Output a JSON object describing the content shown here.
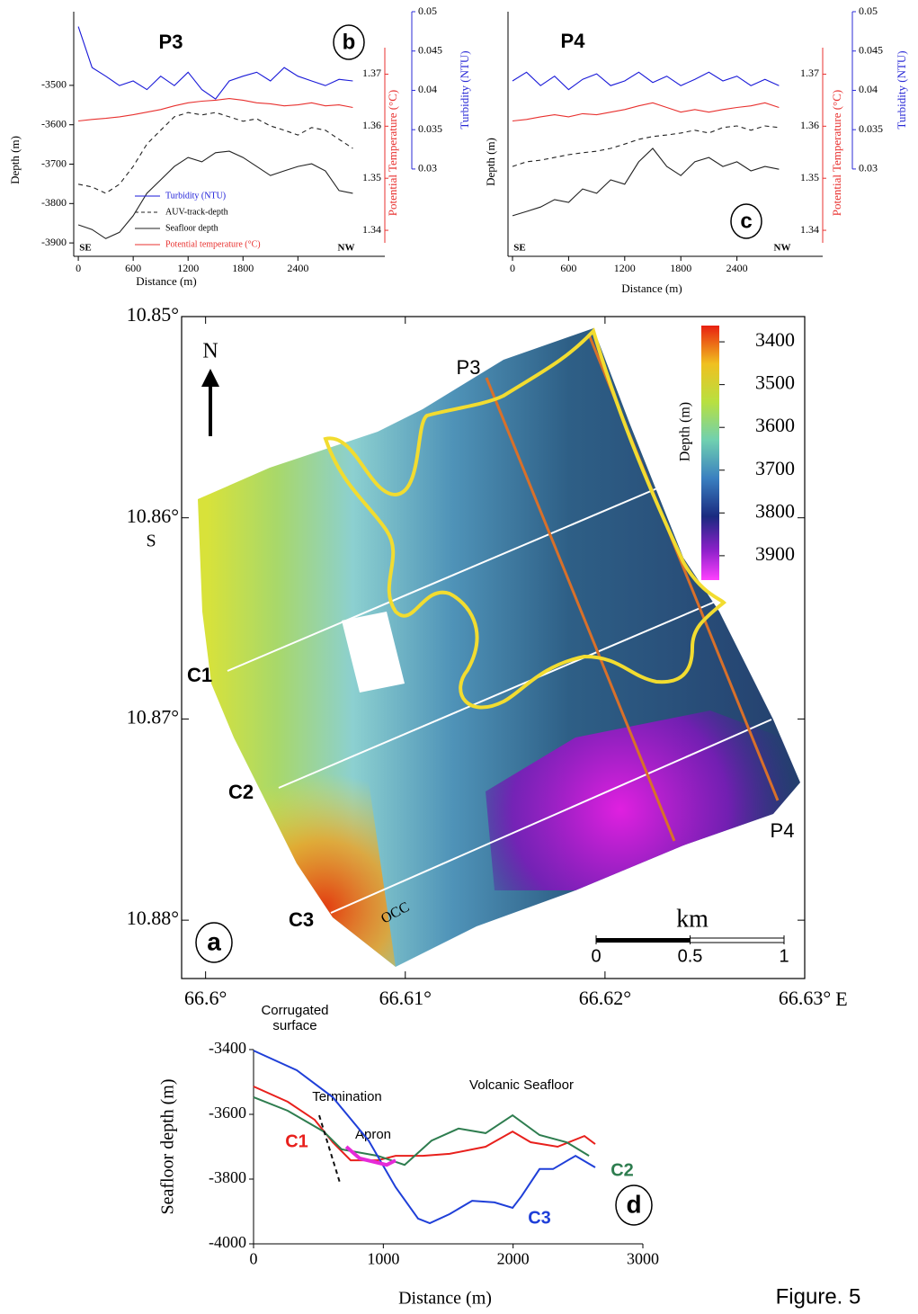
{
  "chart_data": [
    {
      "type": "line",
      "title": "P3",
      "panel_label": "b",
      "left_end": "SE",
      "right_end": "NW",
      "xlabel": "Distance (m)",
      "ylabel": "Depth (m)",
      "y2label": "Potential Temperature (°C)",
      "y3label": "Turbidity (NTU)",
      "xlim": [
        -50,
        3350
      ],
      "xticks": [
        0,
        600,
        1200,
        1800,
        2400
      ],
      "ylim": [
        -3934,
        -3313
      ],
      "yticks": [
        -3500,
        -3600,
        -3700,
        -3800,
        -3900
      ],
      "y2lim": [
        1.335,
        1.382
      ],
      "y2ticks": [
        1.37,
        1.36,
        1.35,
        1.34
      ],
      "y2color": "#e8312f",
      "y3lim": [
        0.0189,
        0.05
      ],
      "y3ticks": [
        0.05,
        0.045,
        0.04,
        0.035,
        0.03
      ],
      "y3color": "#2b2bd6",
      "legend": true,
      "x": [
        0,
        150,
        300,
        450,
        600,
        750,
        900,
        1050,
        1200,
        1350,
        1500,
        1650,
        1800,
        1950,
        2100,
        2250,
        2400,
        2550,
        2700,
        2850,
        3000
      ],
      "series": [
        {
          "name": "Turbidity (NTU)",
          "color": "#1a1ad8",
          "axis": "y3",
          "values": [
            0.0481,
            0.0429,
            0.0418,
            0.0406,
            0.0412,
            0.0401,
            0.0418,
            0.0406,
            0.0423,
            0.0401,
            0.0389,
            0.0412,
            0.0418,
            0.0423,
            0.0412,
            0.0429,
            0.0418,
            0.0412,
            0.0406,
            0.0414,
            0.0412
          ]
        },
        {
          "name": "AUV-track-depth",
          "color": "#222222",
          "axis": "y",
          "dash": true,
          "values": [
            -3751,
            -3758,
            -3774,
            -3751,
            -3706,
            -3649,
            -3614,
            -3580,
            -3569,
            -3575,
            -3569,
            -3580,
            -3591,
            -3585,
            -3603,
            -3614,
            -3626,
            -3607,
            -3614,
            -3637,
            -3660
          ]
        },
        {
          "name": "Seafloor depth",
          "color": "#222222",
          "axis": "y",
          "values": [
            -3854,
            -3866,
            -3889,
            -3873,
            -3831,
            -3774,
            -3740,
            -3706,
            -3683,
            -3694,
            -3671,
            -3667,
            -3683,
            -3706,
            -3729,
            -3717,
            -3706,
            -3699,
            -3717,
            -3767,
            -3774
          ]
        },
        {
          "name": "Potential temperature (°C)",
          "color": "#e8312f",
          "axis": "y2",
          "values": [
            1.361,
            1.3613,
            1.3615,
            1.3618,
            1.3622,
            1.3627,
            1.3632,
            1.3639,
            1.3645,
            1.3648,
            1.365,
            1.3653,
            1.365,
            1.3645,
            1.3643,
            1.3639,
            1.3641,
            1.3645,
            1.3639,
            1.3641,
            1.3636
          ]
        }
      ]
    },
    {
      "type": "line",
      "title": "P4",
      "panel_label": "c",
      "left_end": "SE",
      "right_end": "NW",
      "xlabel": "Distance (m)",
      "ylabel": "Depth (m)",
      "y2label": "Potential Temperature (°C)",
      "y3label": "Turbidity (NTU)",
      "xlim": [
        -48,
        3317
      ],
      "xticks": [
        0,
        600,
        1200,
        1800,
        2400
      ],
      "ylim": [
        -3934,
        -3313
      ],
      "y2lim": [
        1.335,
        1.382
      ],
      "y2ticks": [
        1.37,
        1.36,
        1.35,
        1.34
      ],
      "y2color": "#e8312f",
      "y3lim": [
        0.0189,
        0.05
      ],
      "y3ticks": [
        0.05,
        0.045,
        0.04,
        0.035,
        0.03
      ],
      "y3color": "#2b2bd6",
      "legend": false,
      "x": [
        0,
        150,
        300,
        450,
        600,
        750,
        900,
        1050,
        1200,
        1350,
        1500,
        1650,
        1800,
        1950,
        2100,
        2250,
        2400,
        2550,
        2700,
        2850
      ],
      "series": [
        {
          "color": "#1a1ad8",
          "axis": "y3",
          "values": [
            0.0412,
            0.0423,
            0.0406,
            0.0418,
            0.0401,
            0.0414,
            0.0421,
            0.0406,
            0.0412,
            0.0423,
            0.041,
            0.0418,
            0.0406,
            0.0414,
            0.0423,
            0.0412,
            0.0418,
            0.0406,
            0.0414,
            0.0406
          ]
        },
        {
          "color": "#222222",
          "axis": "y",
          "dash": true,
          "values": [
            -3706,
            -3694,
            -3690,
            -3683,
            -3676,
            -3671,
            -3667,
            -3660,
            -3649,
            -3637,
            -3630,
            -3626,
            -3621,
            -3614,
            -3621,
            -3607,
            -3603,
            -3614,
            -3603,
            -3607
          ]
        },
        {
          "color": "#222222",
          "axis": "y",
          "values": [
            -3831,
            -3820,
            -3809,
            -3790,
            -3797,
            -3763,
            -3774,
            -3740,
            -3751,
            -3694,
            -3660,
            -3706,
            -3729,
            -3694,
            -3683,
            -3706,
            -3694,
            -3717,
            -3706,
            -3713
          ]
        },
        {
          "color": "#e8312f",
          "axis": "y2",
          "values": [
            1.361,
            1.3613,
            1.3618,
            1.3622,
            1.3618,
            1.3624,
            1.3622,
            1.3627,
            1.3632,
            1.3639,
            1.3645,
            1.3636,
            1.3627,
            1.3632,
            1.3627,
            1.3632,
            1.3636,
            1.3639,
            1.3645,
            1.3636
          ]
        }
      ]
    },
    {
      "type": "map",
      "panel_label": "a",
      "xlim": [
        66.5988,
        66.63
      ],
      "ylim": [
        10.85,
        10.8829
      ],
      "xticks": [
        {
          "value": 66.6,
          "label": "66.6°"
        },
        {
          "value": 66.61,
          "label": "66.61°"
        },
        {
          "value": 66.62,
          "label": "66.62°"
        },
        {
          "value": 66.63,
          "label": "66.63°"
        }
      ],
      "yticks": [
        {
          "value": 10.85,
          "label": "10.85°"
        },
        {
          "value": 10.86,
          "label": "10.86°"
        },
        {
          "value": 10.87,
          "label": "10.87°"
        },
        {
          "value": 10.88,
          "label": "10.88°"
        }
      ],
      "lat_hemisphere": "S",
      "lon_hemisphere": "E",
      "colorbar": {
        "label": "Depth (m)",
        "lim": [
          3362,
          3957
        ],
        "ticks": [
          3400,
          3500,
          3600,
          3700,
          3800,
          3900
        ]
      },
      "scalebar": {
        "unit": "km",
        "ticks": [
          0,
          0.5,
          1
        ]
      },
      "north": "N",
      "profiles": [
        "P3",
        "P4"
      ],
      "cross_sections": [
        "C1",
        "C2",
        "C3"
      ],
      "feature": "OCC"
    },
    {
      "type": "line",
      "panel_label": "d",
      "xlabel": "Distance (m)",
      "ylabel": "Seafloor depth (m)",
      "xlim": [
        0,
        3000
      ],
      "xticks": [
        0,
        1000,
        2000,
        3000
      ],
      "ylim": [
        -4000,
        -3400
      ],
      "yticks": [
        -4000,
        -3800,
        -3600,
        -3400
      ],
      "annotations": [
        "Corrugated surface",
        "Volcanic Seafloor"
      ],
      "series": [
        {
          "name": "C1",
          "color": "#e8201c",
          "x": [
            0,
            263,
            471,
            610,
            748,
            956,
            1095,
            1303,
            1511,
            1788,
            1996,
            2135,
            2343,
            2550,
            2633
          ],
          "values": [
            -3514,
            -3561,
            -3617,
            -3686,
            -3742,
            -3742,
            -3728,
            -3728,
            -3722,
            -3700,
            -3653,
            -3686,
            -3700,
            -3667,
            -3692
          ]
        },
        {
          "name": "C2",
          "color": "#2e7d4f",
          "x": [
            0,
            263,
            540,
            679,
            956,
            1164,
            1372,
            1580,
            1788,
            1996,
            2204,
            2412,
            2585
          ],
          "values": [
            -3547,
            -3589,
            -3653,
            -3708,
            -3728,
            -3756,
            -3681,
            -3644,
            -3658,
            -3603,
            -3664,
            -3686,
            -3728
          ]
        },
        {
          "name": "C3",
          "color": "#1f3fd8",
          "x": [
            0,
            333,
            610,
            887,
            1095,
            1268,
            1358,
            1511,
            1684,
            1857,
            1996,
            2065,
            2204,
            2308,
            2481,
            2633
          ],
          "values": [
            -3403,
            -3464,
            -3547,
            -3681,
            -3825,
            -3922,
            -3936,
            -3908,
            -3867,
            -3872,
            -3889,
            -3853,
            -3769,
            -3769,
            -3728,
            -3764
          ]
        },
        {
          "name": "Apron",
          "color": "#e62ad8",
          "width": 4,
          "x": [
            714,
            818,
            1026,
            1095
          ],
          "values": [
            -3700,
            -3736,
            -3756,
            -3742
          ]
        },
        {
          "name": "Termination",
          "color": "#111111",
          "dash": true,
          "x": [
            506,
            665
          ],
          "values": [
            -3603,
            -3811
          ]
        }
      ]
    }
  ],
  "caption": "Figure. 5"
}
